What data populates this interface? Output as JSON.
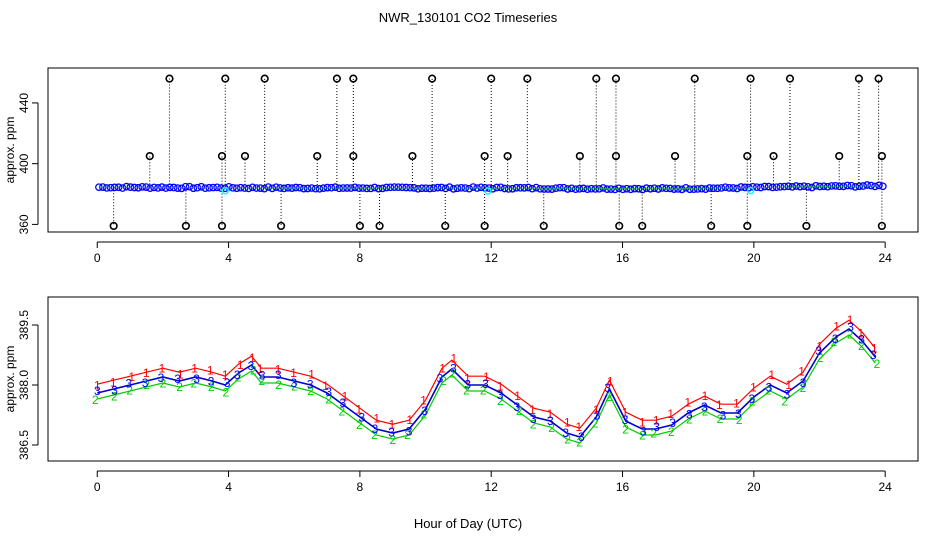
{
  "chart_data": {
    "type": "scatter",
    "title": "NWR_130101  CO2 Timeseries",
    "xlabel": "Hour of Day (UTC)",
    "colors": {
      "series1": "#ff0000",
      "series2": "#00cc00",
      "series3": "#0000ff",
      "line": "#0000cc",
      "cyan": "#00ffff",
      "axis": "#000000"
    },
    "panels": [
      {
        "name": "top",
        "ylabel": "approx. ppm",
        "xlim": [
          -1.5,
          25
        ],
        "ylim": [
          355,
          463
        ],
        "xticks": [
          0,
          4,
          8,
          12,
          16,
          20,
          24
        ],
        "yticks": [
          360,
          400,
          440
        ],
        "baseline_hours": [
          0.1,
          6.0,
          11.5,
          17.5,
          23.9
        ],
        "baseline_values": [
          384.5,
          384.0,
          384.0,
          383.5,
          385.5
        ],
        "spikes_high": [
          2.2,
          3.9,
          5.1,
          7.3,
          7.8,
          10.2,
          12.0,
          13.1,
          15.2,
          15.8,
          18.2,
          19.9,
          21.1,
          23.2,
          23.8
        ],
        "spikes_mid": [
          1.6,
          3.8,
          4.5,
          6.7,
          7.8,
          9.6,
          11.8,
          12.5,
          14.7,
          15.8,
          17.6,
          19.8,
          20.6,
          22.6,
          23.9
        ],
        "spikes_low": [
          0.5,
          2.7,
          3.8,
          5.6,
          8.0,
          8.6,
          10.6,
          11.8,
          13.6,
          15.9,
          16.6,
          18.7,
          19.8,
          21.6,
          23.9
        ],
        "spike_values": {
          "high": 456,
          "mid": 405,
          "low": 359
        }
      },
      {
        "name": "bottom",
        "ylabel": "approx. ppm",
        "xlim": [
          -1.5,
          25
        ],
        "ylim": [
          386.1,
          390.2
        ],
        "xticks": [
          0,
          4,
          8,
          12,
          16,
          20,
          24
        ],
        "yticks": [
          386.5,
          388.0,
          389.5
        ],
        "ytick_labels": [
          "386.5",
          "388.0",
          "389.5"
        ],
        "markers": [
          "1",
          "2",
          "3"
        ],
        "x": [
          0.0,
          0.5,
          1.0,
          1.5,
          2.0,
          2.5,
          3.0,
          3.5,
          3.9,
          4.3,
          4.7,
          5.0,
          5.5,
          6.0,
          6.5,
          7.0,
          7.5,
          8.0,
          8.5,
          9.0,
          9.5,
          10.0,
          10.5,
          10.8,
          11.3,
          11.8,
          12.3,
          12.8,
          13.3,
          13.8,
          14.3,
          14.7,
          15.2,
          15.6,
          16.1,
          16.6,
          17.0,
          17.5,
          18.0,
          18.5,
          19.0,
          19.5,
          20.0,
          20.5,
          21.0,
          21.5,
          22.0,
          22.5,
          22.9,
          23.3,
          23.7
        ],
        "y": [
          387.8,
          387.9,
          388.0,
          388.1,
          388.2,
          388.1,
          388.2,
          388.1,
          388.0,
          388.3,
          388.5,
          388.2,
          388.2,
          388.1,
          388.0,
          387.8,
          387.5,
          387.2,
          386.9,
          386.8,
          386.9,
          387.4,
          388.2,
          388.4,
          388.0,
          388.0,
          387.8,
          387.5,
          387.2,
          387.1,
          386.8,
          386.7,
          387.2,
          387.9,
          387.1,
          386.9,
          386.9,
          387.0,
          387.3,
          387.5,
          387.3,
          387.3,
          387.7,
          388.0,
          387.8,
          388.1,
          388.8,
          389.2,
          389.4,
          389.1,
          388.7
        ]
      }
    ]
  }
}
